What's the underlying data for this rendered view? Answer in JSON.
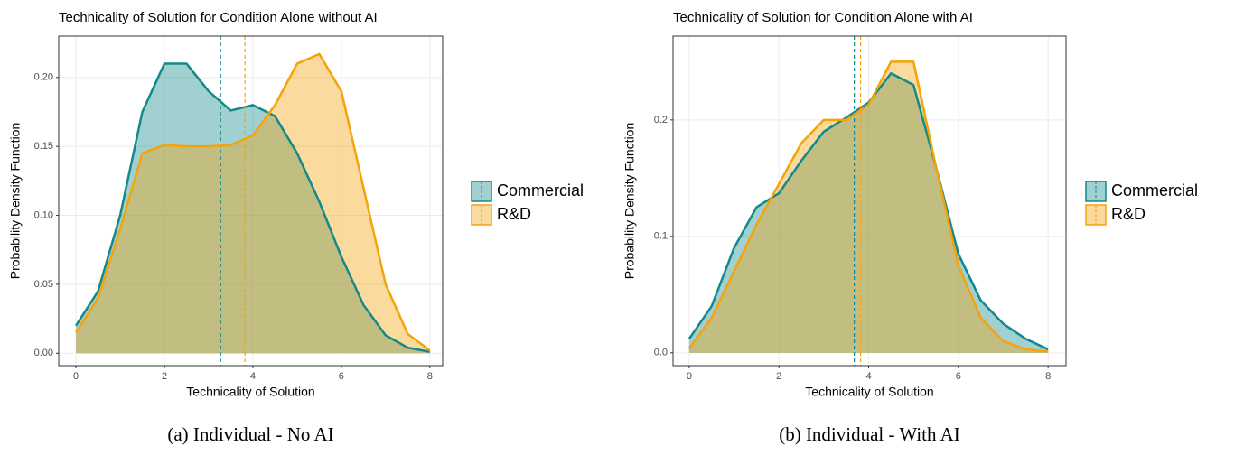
{
  "chart_data": [
    {
      "type": "density",
      "title": "Technicality of Solution for Condition Alone without AI",
      "x_label": "Technicality of Solution",
      "y_label": "Probability Density Function",
      "caption": "(a) Individual - No AI",
      "x": [
        0,
        0.5,
        1,
        1.5,
        2,
        2.5,
        3,
        3.5,
        4,
        4.5,
        5,
        5.5,
        6,
        6.5,
        7,
        7.5,
        8
      ],
      "series": [
        {
          "name": "Commercial",
          "color": "#14898b",
          "mean": 3.27,
          "values": [
            0.02,
            0.045,
            0.1,
            0.175,
            0.21,
            0.21,
            0.19,
            0.176,
            0.18,
            0.172,
            0.145,
            0.11,
            0.07,
            0.035,
            0.013,
            0.004,
            0.001
          ]
        },
        {
          "name": "R&D",
          "color": "#f5a30a",
          "mean": 3.82,
          "values": [
            0.015,
            0.04,
            0.09,
            0.145,
            0.151,
            0.15,
            0.15,
            0.151,
            0.158,
            0.18,
            0.21,
            0.217,
            0.19,
            0.12,
            0.05,
            0.014,
            0.002
          ]
        }
      ],
      "xlim": [
        -0.39,
        8.29
      ],
      "ylim": [
        -0.009,
        0.23
      ],
      "xticks": [
        0,
        2,
        4,
        6,
        8
      ],
      "yticks": [
        {
          "value": 0,
          "label": "0.00"
        },
        {
          "value": 0.05,
          "label": "0.05"
        },
        {
          "value": 0.1,
          "label": "0.10"
        },
        {
          "value": 0.15,
          "label": "0.15"
        },
        {
          "value": 0.2,
          "label": "0.20"
        }
      ],
      "grid": true
    },
    {
      "type": "density",
      "title": "Technicality of Solution for Condition Alone with AI",
      "x_label": "Technicality of Solution",
      "y_label": "Probability Density Function",
      "caption": "(b) Individual - With AI",
      "x": [
        0,
        0.5,
        1,
        1.5,
        2,
        2.5,
        3,
        3.5,
        4,
        4.5,
        5,
        5.5,
        6,
        6.5,
        7,
        7.5,
        8
      ],
      "series": [
        {
          "name": "Commercial",
          "color": "#14898b",
          "mean": 3.68,
          "values": [
            0.012,
            0.04,
            0.09,
            0.125,
            0.137,
            0.165,
            0.19,
            0.202,
            0.215,
            0.24,
            0.23,
            0.16,
            0.085,
            0.045,
            0.025,
            0.012,
            0.003
          ]
        },
        {
          "name": "R&D",
          "color": "#f5a30a",
          "mean": 3.82,
          "values": [
            0.004,
            0.03,
            0.07,
            0.11,
            0.145,
            0.18,
            0.2,
            0.2,
            0.213,
            0.25,
            0.25,
            0.16,
            0.075,
            0.03,
            0.01,
            0.003,
            0.001
          ]
        }
      ],
      "xlim": [
        -0.36,
        8.4
      ],
      "ylim": [
        -0.011,
        0.272
      ],
      "xticks": [
        0,
        2,
        4,
        6,
        8
      ],
      "yticks": [
        {
          "value": 0,
          "label": "0.0"
        },
        {
          "value": 0.1,
          "label": "0.1"
        },
        {
          "value": 0.2,
          "label": "0.2"
        }
      ],
      "grid": true
    }
  ]
}
